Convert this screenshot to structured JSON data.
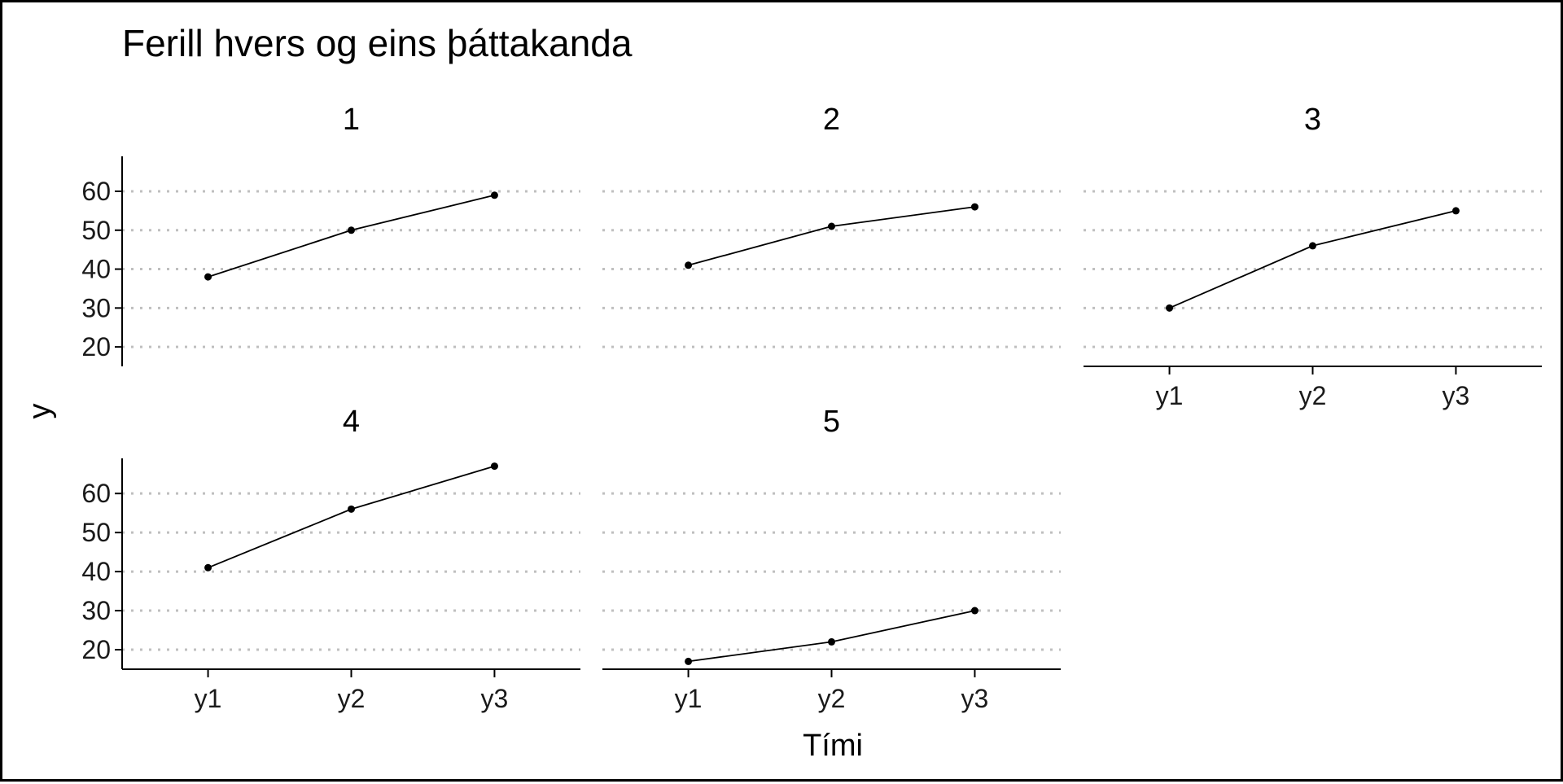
{
  "chart_data": {
    "type": "line",
    "title": "Ferill hvers og eins þáttakanda",
    "xlabel": "Tími",
    "ylabel": "y",
    "categories": [
      "y1",
      "y2",
      "y3"
    ],
    "y_ticks": [
      20,
      30,
      40,
      50,
      60
    ],
    "ylim": [
      15,
      69
    ],
    "grid": "horizontal dotted",
    "legend": "none",
    "colors": {
      "line": "#000000",
      "grid": "#bfbfbf",
      "frame": "#000000"
    },
    "series": [
      {
        "name": "1",
        "values": [
          38,
          50,
          59
        ]
      },
      {
        "name": "2",
        "values": [
          41,
          51,
          56
        ]
      },
      {
        "name": "3",
        "values": [
          30,
          46,
          55
        ]
      },
      {
        "name": "4",
        "values": [
          41,
          56,
          67
        ]
      },
      {
        "name": "5",
        "values": [
          17,
          22,
          30
        ]
      }
    ]
  }
}
